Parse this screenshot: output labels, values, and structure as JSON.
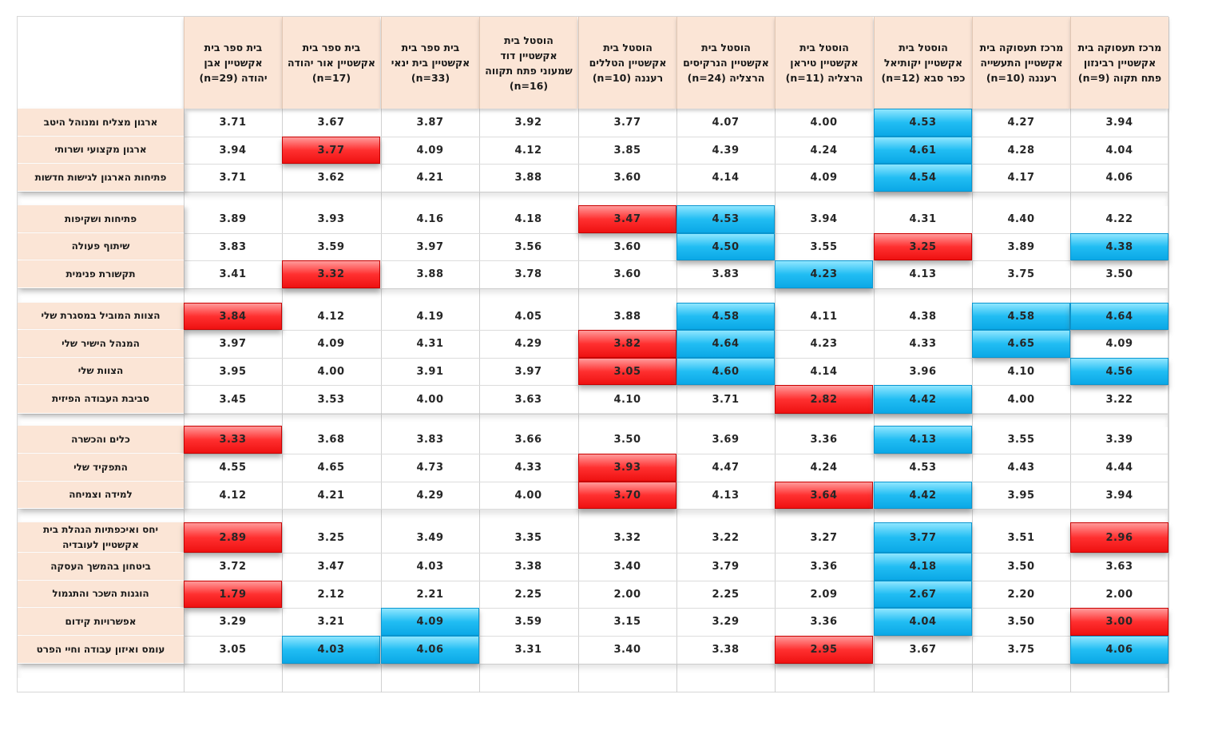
{
  "columns": [
    {
      "lines": [
        "בית ספר בית",
        "אקשטיין אבן",
        "יהודה (n=29)"
      ]
    },
    {
      "lines": [
        "בית ספר בית",
        "אקשטיין אור יהודה",
        "(n=17)"
      ]
    },
    {
      "lines": [
        "בית ספר בית",
        "אקשטיין בית ינאי",
        "(n=33)"
      ]
    },
    {
      "lines": [
        "הוסטל בית",
        "אקשטיין דוד",
        "שמעוני פתח תקווה",
        "(n=16)"
      ]
    },
    {
      "lines": [
        "הוסטל בית",
        "אקשטיין הטללים",
        "רעננה (n=10)"
      ]
    },
    {
      "lines": [
        "הוסטל בית",
        "אקשטיין הנרקיסים",
        "הרצליה (n=24)"
      ]
    },
    {
      "lines": [
        "הוסטל בית",
        "אקשטיין טיראן",
        "הרצליה (n=11)"
      ]
    },
    {
      "lines": [
        "הוסטל בית",
        "אקשטיין יקותיאל",
        "כפר סבא (n=12)"
      ]
    },
    {
      "lines": [
        "מרכז תעסוקה בית",
        "אקשטיין התעשייה",
        "רעננה (n=10)"
      ]
    },
    {
      "lines": [
        "מרכז תעסוקה בית",
        "אקשטיין רבינזון",
        "פתח תקוה (n=9)"
      ]
    }
  ],
  "rows": [
    {
      "label": "ארגון מצליח ומנוהל היטב",
      "values": [
        "3.71",
        "3.67",
        "3.87",
        "3.92",
        "3.77",
        "4.07",
        "4.00",
        "4.53",
        "4.27",
        "3.94"
      ],
      "marks": [
        "",
        "",
        "",
        "",
        "",
        "",
        "",
        "hi",
        "",
        ""
      ]
    },
    {
      "label": "ארגון מקצועי ושרותי",
      "values": [
        "3.94",
        "3.77",
        "4.09",
        "4.12",
        "3.85",
        "4.39",
        "4.24",
        "4.61",
        "4.28",
        "4.04"
      ],
      "marks": [
        "",
        "lo",
        "",
        "",
        "",
        "",
        "",
        "hi",
        "",
        ""
      ]
    },
    {
      "label": "פתיחות הארגון לגישות חדשות",
      "values": [
        "3.71",
        "3.62",
        "4.21",
        "3.88",
        "3.60",
        "4.14",
        "4.09",
        "4.54",
        "4.17",
        "4.06"
      ],
      "marks": [
        "",
        "",
        "",
        "",
        "",
        "",
        "",
        "hi",
        "",
        ""
      ]
    },
    {
      "label": "פתיחות ושקיפות",
      "values": [
        "3.89",
        "3.93",
        "4.16",
        "4.18",
        "3.47",
        "4.53",
        "3.94",
        "4.31",
        "4.40",
        "4.22"
      ],
      "marks": [
        "",
        "",
        "",
        "",
        "lo",
        "hi",
        "",
        "",
        "",
        ""
      ]
    },
    {
      "label": "שיתוף פעולה",
      "values": [
        "3.83",
        "3.59",
        "3.97",
        "3.56",
        "3.60",
        "4.50",
        "3.55",
        "3.25",
        "3.89",
        "4.38"
      ],
      "marks": [
        "",
        "",
        "",
        "",
        "",
        "hi",
        "",
        "lo",
        "",
        "hi"
      ]
    },
    {
      "label": "תקשורת פנימית",
      "values": [
        "3.41",
        "3.32",
        "3.88",
        "3.78",
        "3.60",
        "3.83",
        "4.23",
        "4.13",
        "3.75",
        "3.50"
      ],
      "marks": [
        "",
        "lo",
        "",
        "",
        "",
        "",
        "hi",
        "",
        "",
        ""
      ]
    },
    {
      "label": "הצוות המוביל במסגרת שלי",
      "values": [
        "3.84",
        "4.12",
        "4.19",
        "4.05",
        "3.88",
        "4.58",
        "4.11",
        "4.38",
        "4.58",
        "4.64"
      ],
      "marks": [
        "lo",
        "",
        "",
        "",
        "",
        "hi",
        "",
        "",
        "hi",
        "hi"
      ]
    },
    {
      "label": "המנהל הישיר שלי",
      "values": [
        "3.97",
        "4.09",
        "4.31",
        "4.29",
        "3.82",
        "4.64",
        "4.23",
        "4.33",
        "4.65",
        "4.09"
      ],
      "marks": [
        "",
        "",
        "",
        "",
        "lo",
        "hi",
        "",
        "",
        "hi",
        ""
      ]
    },
    {
      "label": "הצוות שלי",
      "values": [
        "3.95",
        "4.00",
        "3.91",
        "3.97",
        "3.05",
        "4.60",
        "4.14",
        "3.96",
        "4.10",
        "4.56"
      ],
      "marks": [
        "",
        "",
        "",
        "",
        "lo",
        "hi",
        "",
        "",
        "",
        "hi"
      ]
    },
    {
      "label": "סביבת העבודה הפיזית",
      "values": [
        "3.45",
        "3.53",
        "4.00",
        "3.63",
        "4.10",
        "3.71",
        "2.82",
        "4.42",
        "4.00",
        "3.22"
      ],
      "marks": [
        "",
        "",
        "",
        "",
        "",
        "",
        "lo",
        "hi",
        "",
        ""
      ]
    },
    {
      "label": "כלים והכשרה",
      "values": [
        "3.33",
        "3.68",
        "3.83",
        "3.66",
        "3.50",
        "3.69",
        "3.36",
        "4.13",
        "3.55",
        "3.39"
      ],
      "marks": [
        "lo",
        "",
        "",
        "",
        "",
        "",
        "",
        "hi",
        "",
        ""
      ]
    },
    {
      "label": "התפקיד שלי",
      "values": [
        "4.55",
        "4.65",
        "4.73",
        "4.33",
        "3.93",
        "4.47",
        "4.24",
        "4.53",
        "4.43",
        "4.44"
      ],
      "marks": [
        "",
        "",
        "",
        "",
        "lo",
        "",
        "",
        "",
        "",
        ""
      ]
    },
    {
      "label": "למידה וצמיחה",
      "values": [
        "4.12",
        "4.21",
        "4.29",
        "4.00",
        "3.70",
        "4.13",
        "3.64",
        "4.42",
        "3.95",
        "3.94"
      ],
      "marks": [
        "",
        "",
        "",
        "",
        "lo",
        "",
        "lo",
        "hi",
        "",
        ""
      ]
    },
    {
      "label": "יחס ואיכפתיות הנהלת בית אקשטיין לעובדיה",
      "values": [
        "2.89",
        "3.25",
        "3.49",
        "3.35",
        "3.32",
        "3.22",
        "3.27",
        "3.77",
        "3.51",
        "2.96"
      ],
      "marks": [
        "lo",
        "",
        "",
        "",
        "",
        "",
        "",
        "hi",
        "",
        "lo"
      ]
    },
    {
      "label": "ביטחון בהמשך העסקה",
      "values": [
        "3.72",
        "3.47",
        "4.03",
        "3.38",
        "3.40",
        "3.79",
        "3.36",
        "4.18",
        "3.50",
        "3.63"
      ],
      "marks": [
        "",
        "",
        "",
        "",
        "",
        "",
        "",
        "hi",
        "",
        ""
      ]
    },
    {
      "label": "הוגנות השכר והתגמול",
      "values": [
        "1.79",
        "2.12",
        "2.21",
        "2.25",
        "2.00",
        "2.25",
        "2.09",
        "2.67",
        "2.20",
        "2.00"
      ],
      "marks": [
        "lo",
        "",
        "",
        "",
        "",
        "",
        "",
        "hi",
        "",
        ""
      ]
    },
    {
      "label": "אפשרויות קידום",
      "values": [
        "3.29",
        "3.21",
        "4.09",
        "3.59",
        "3.15",
        "3.29",
        "3.36",
        "4.04",
        "3.50",
        "3.00"
      ],
      "marks": [
        "",
        "",
        "hi",
        "",
        "",
        "",
        "",
        "hi",
        "",
        "lo"
      ]
    },
    {
      "label": "עומס ואיזון עבודה וחיי הפרט",
      "values": [
        "3.05",
        "4.03",
        "4.06",
        "3.31",
        "3.40",
        "3.38",
        "2.95",
        "3.67",
        "3.75",
        "4.06"
      ],
      "marks": [
        "",
        "hi",
        "hi",
        "",
        "",
        "",
        "lo",
        "",
        "",
        "hi"
      ]
    }
  ],
  "colors": {
    "highlight_high": "#21bdf3",
    "highlight_low": "#ff3030",
    "header_bg": "#fbe5d6"
  }
}
